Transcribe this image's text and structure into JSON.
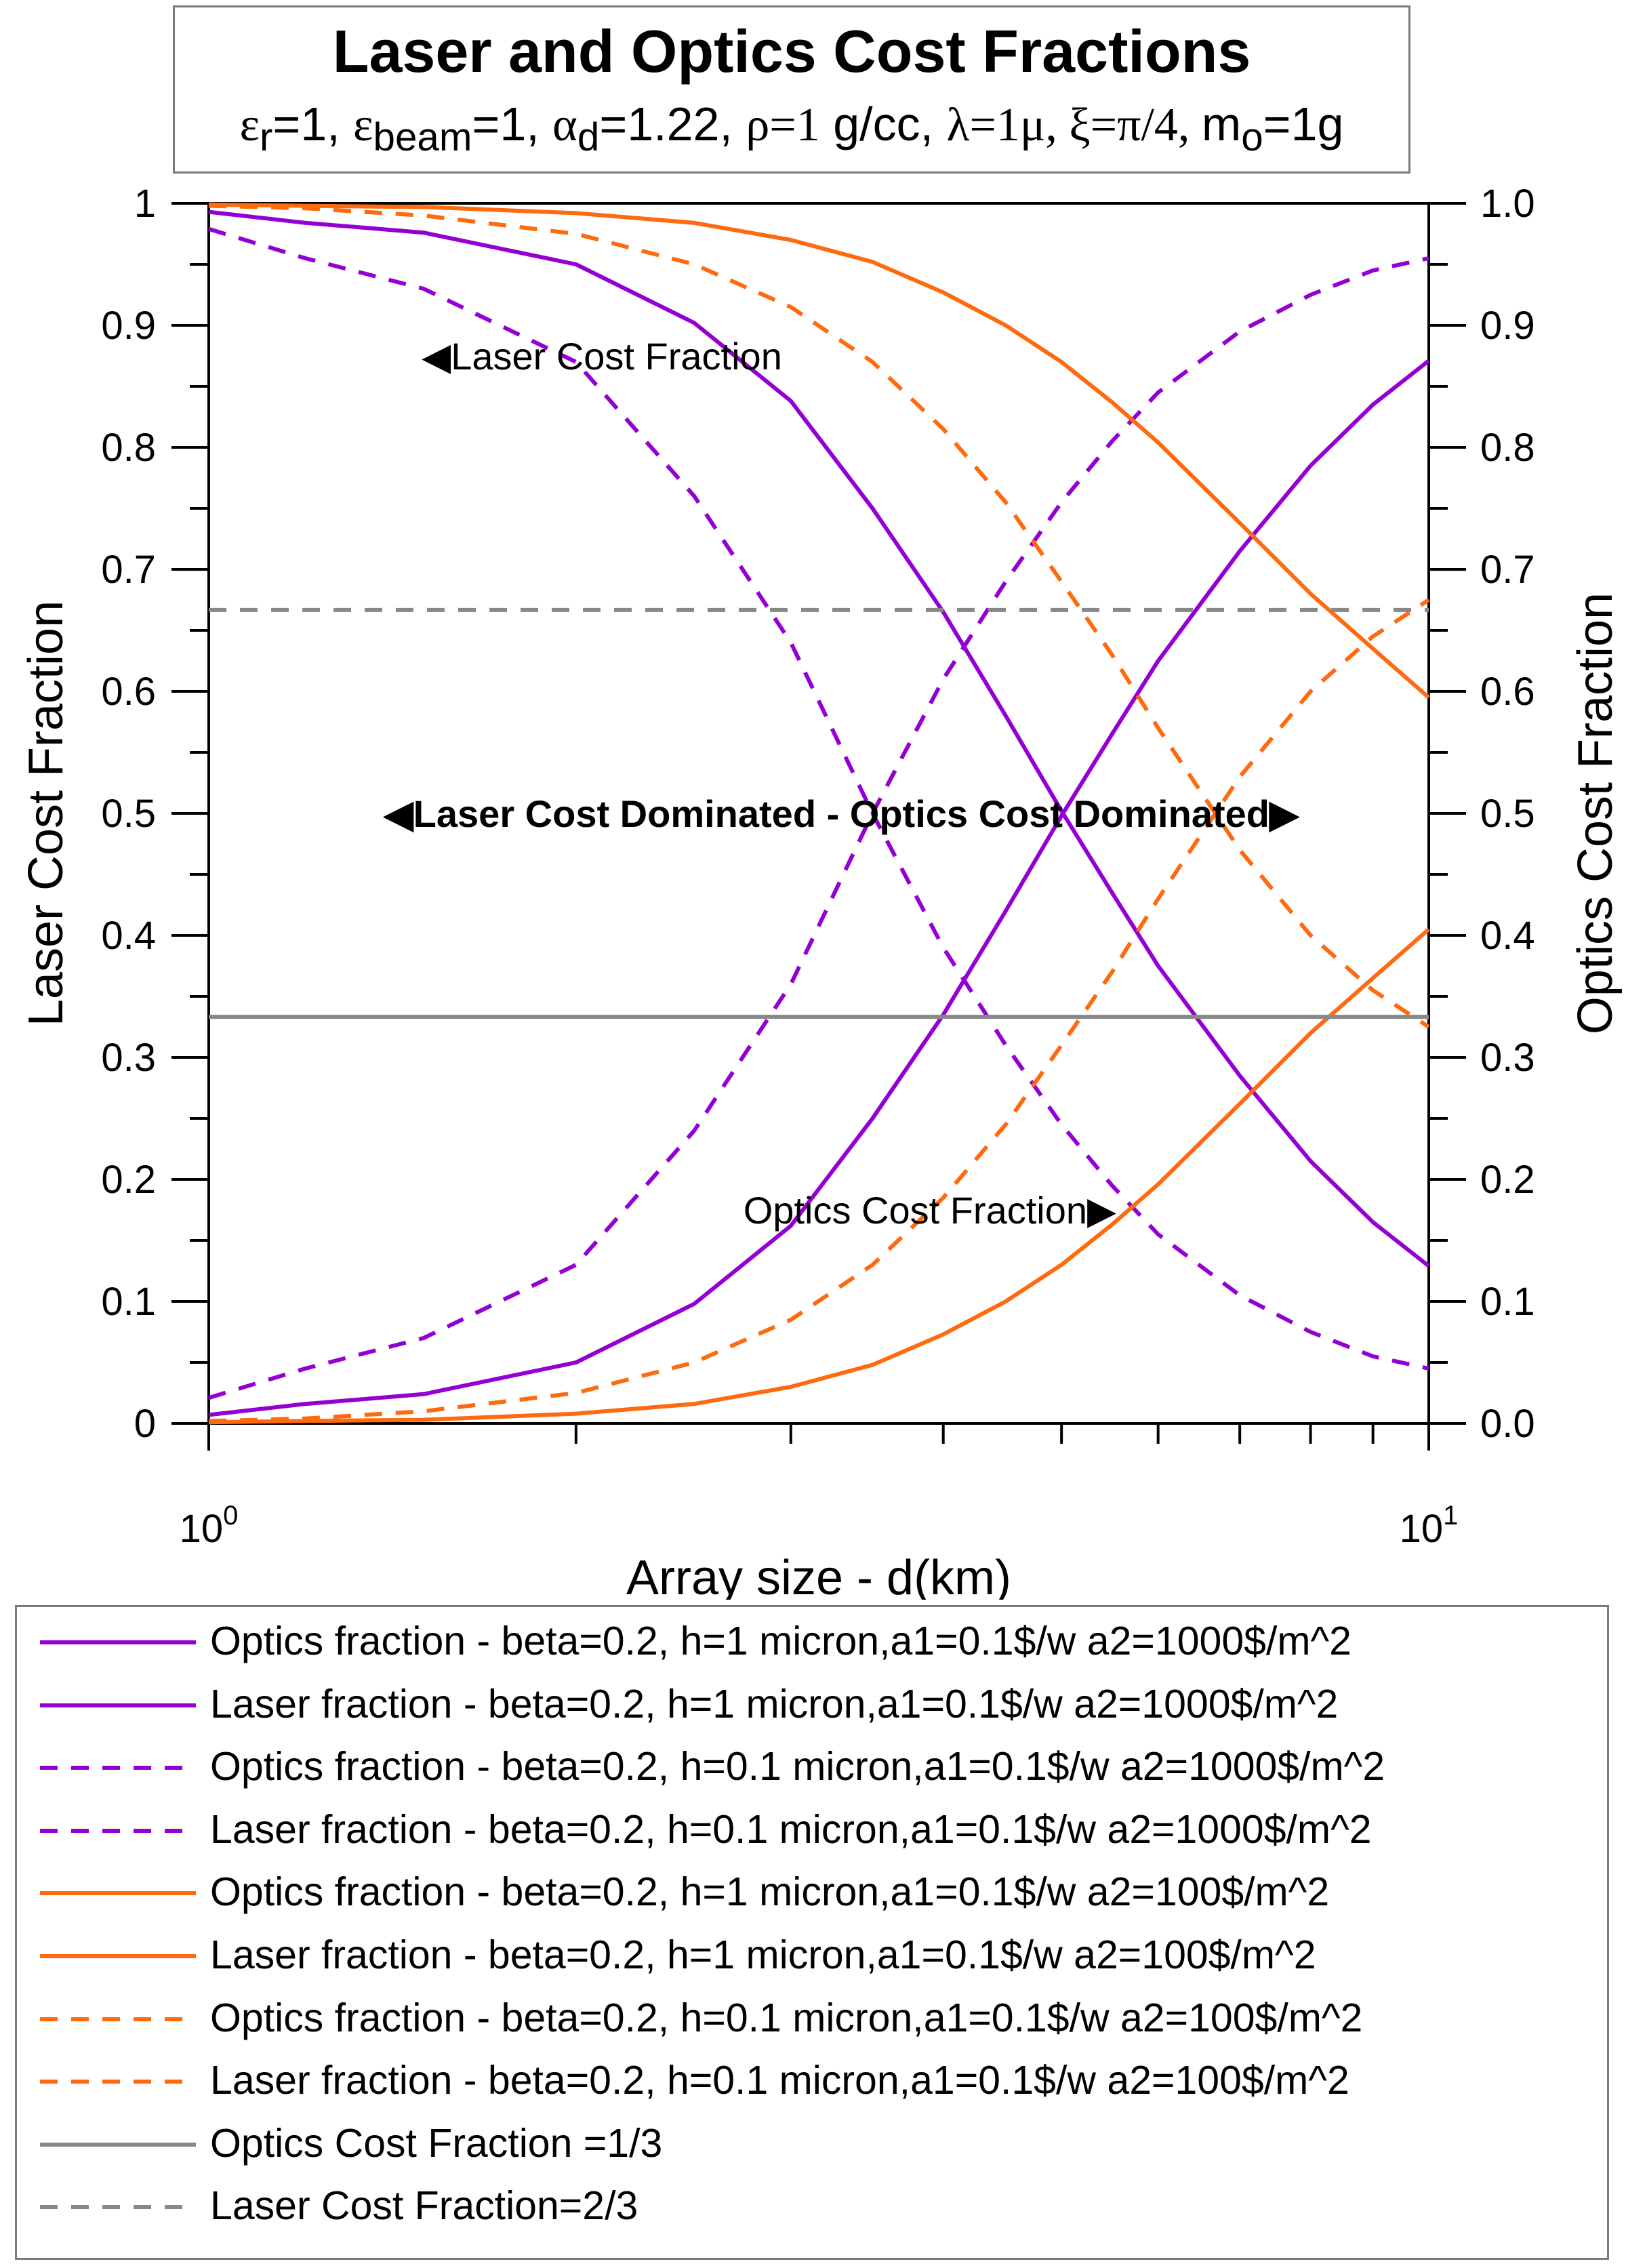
{
  "title": "Laser and Optics Cost Fractions",
  "subtitle": {
    "eps_r": "ε",
    "eps_r_sub": "r",
    "eps_r_val": "=1, ",
    "eps_beam": "ε",
    "eps_beam_sub": "beam",
    "eps_beam_val": "=1, ",
    "alpha": "α",
    "alpha_sub": "d",
    "alpha_val": "=1.22, ",
    "rho": "ρ=1",
    "rho_unit": " g/cc, ",
    "lambda": "λ=1μ, ξ=π/4, ",
    "m": "m",
    "m_sub": "o",
    "m_val": "=1g"
  },
  "chart_data": {
    "type": "line",
    "title": "Laser and Optics Cost Fractions",
    "xlabel": "Array size - d(km)",
    "ylabel": "Laser Cost Fraction",
    "y2label": "Optics Cost Fraction",
    "xscale": "log",
    "xlim": [
      1,
      10
    ],
    "ylim": [
      0,
      1
    ],
    "y2lim": [
      0,
      1
    ],
    "x_tick_labels": [
      {
        "value": 1,
        "base": "10",
        "exp": "0"
      },
      {
        "value": 10,
        "base": "10",
        "exp": "1"
      }
    ],
    "x_minor_ticks": [
      2,
      3,
      4,
      5,
      6,
      7,
      8,
      9
    ],
    "y_ticks": [
      0,
      0.1,
      0.2,
      0.3,
      0.4,
      0.5,
      0.6,
      0.7,
      0.8,
      0.9,
      1
    ],
    "y_tick_labels": [
      "0",
      "0.1",
      "0.2",
      "0.3",
      "0.4",
      "0.5",
      "0.6",
      "0.7",
      "0.8",
      "0.9",
      "1"
    ],
    "y2_tick_labels": [
      "0.0",
      "0.1",
      "0.2",
      "0.3",
      "0.4",
      "0.5",
      "0.6",
      "0.7",
      "0.8",
      "0.9",
      "1.0"
    ],
    "x": [
      1,
      1.2,
      1.5,
      2,
      2.5,
      3,
      3.5,
      4,
      4.5,
      5,
      5.5,
      6,
      7,
      8,
      9,
      10
    ],
    "series": [
      {
        "name": "Optics fraction - beta=0.2, h=1 micron,a1=0.1$/w a2=1000$/m^2",
        "color": "#9400d3",
        "dash": "solid",
        "values": [
          0.007,
          0.016,
          0.024,
          0.05,
          0.098,
          0.162,
          0.25,
          0.335,
          0.42,
          0.498,
          0.565,
          0.625,
          0.715,
          0.785,
          0.835,
          0.871
        ]
      },
      {
        "name": "Laser fraction - beta=0.2, h=1 micron,a1=0.1$/w a2=1000$/m^2",
        "color": "#9400d3",
        "dash": "solid",
        "values": [
          0.993,
          0.984,
          0.976,
          0.95,
          0.902,
          0.838,
          0.75,
          0.665,
          0.58,
          0.502,
          0.435,
          0.375,
          0.285,
          0.215,
          0.165,
          0.129
        ]
      },
      {
        "name": "Optics fraction - beta=0.2, h=0.1 micron,a1=0.1$/w a2=1000$/m^2",
        "color": "#9400d3",
        "dash": "dash",
        "values": [
          0.021,
          0.045,
          0.07,
          0.13,
          0.24,
          0.36,
          0.5,
          0.61,
          0.69,
          0.755,
          0.805,
          0.845,
          0.895,
          0.925,
          0.945,
          0.955
        ]
      },
      {
        "name": "Laser fraction - beta=0.2, h=0.1 micron,a1=0.1$/w a2=1000$/m^2",
        "color": "#9400d3",
        "dash": "dash",
        "values": [
          0.979,
          0.955,
          0.93,
          0.87,
          0.76,
          0.64,
          0.5,
          0.39,
          0.31,
          0.245,
          0.195,
          0.155,
          0.105,
          0.075,
          0.055,
          0.045
        ]
      },
      {
        "name": "Optics fraction - beta=0.2, h=1 micron,a1=0.1$/w a2=100$/m^2",
        "color": "#ff6a0e",
        "dash": "solid",
        "values": [
          0.001,
          0.002,
          0.003,
          0.008,
          0.016,
          0.03,
          0.048,
          0.073,
          0.1,
          0.13,
          0.163,
          0.196,
          0.262,
          0.32,
          0.365,
          0.405
        ]
      },
      {
        "name": "Laser fraction - beta=0.2, h=1 micron,a1=0.1$/w a2=100$/m^2",
        "color": "#ff6a0e",
        "dash": "solid",
        "values": [
          0.999,
          0.998,
          0.997,
          0.992,
          0.984,
          0.97,
          0.952,
          0.927,
          0.9,
          0.87,
          0.837,
          0.804,
          0.738,
          0.68,
          0.635,
          0.595
        ]
      },
      {
        "name": "Optics fraction - beta=0.2, h=0.1 micron,a1=0.1$/w a2=100$/m^2",
        "color": "#ff6a0e",
        "dash": "dash",
        "values": [
          0.002,
          0.004,
          0.01,
          0.025,
          0.05,
          0.085,
          0.13,
          0.185,
          0.245,
          0.31,
          0.37,
          0.43,
          0.53,
          0.6,
          0.645,
          0.675
        ]
      },
      {
        "name": "Laser fraction - beta=0.2, h=0.1 micron,a1=0.1$/w a2=100$/m^2",
        "color": "#ff6a0e",
        "dash": "dash",
        "values": [
          0.998,
          0.996,
          0.99,
          0.975,
          0.95,
          0.915,
          0.87,
          0.815,
          0.755,
          0.69,
          0.63,
          0.57,
          0.47,
          0.4,
          0.355,
          0.325
        ]
      },
      {
        "name": "Optics Cost Fraction =1/3",
        "color": "#888888",
        "dash": "solid",
        "values": [
          0.3333,
          0.3333,
          0.3333,
          0.3333,
          0.3333,
          0.3333,
          0.3333,
          0.3333,
          0.3333,
          0.3333,
          0.3333,
          0.3333,
          0.3333,
          0.3333,
          0.3333,
          0.3333
        ]
      },
      {
        "name": "Laser Cost Fraction=2/3",
        "color": "#888888",
        "dash": "dash",
        "values": [
          0.6667,
          0.6667,
          0.6667,
          0.6667,
          0.6667,
          0.6667,
          0.6667,
          0.6667,
          0.6667,
          0.6667,
          0.6667,
          0.6667,
          0.6667,
          0.6667,
          0.6667,
          0.6667
        ]
      }
    ],
    "annotations": [
      {
        "text": "◀Laser Cost Fraction",
        "x": 2.1,
        "y": 0.875,
        "bold": false
      },
      {
        "text": "◀Laser Cost Dominated - Optics Cost Dominated▶",
        "x": 3.3,
        "y": 0.5,
        "bold": true
      },
      {
        "text": "Optics Cost Fraction▶",
        "x": 3.9,
        "y": 0.175,
        "bold": false
      }
    ],
    "legend_position": "bottom"
  }
}
